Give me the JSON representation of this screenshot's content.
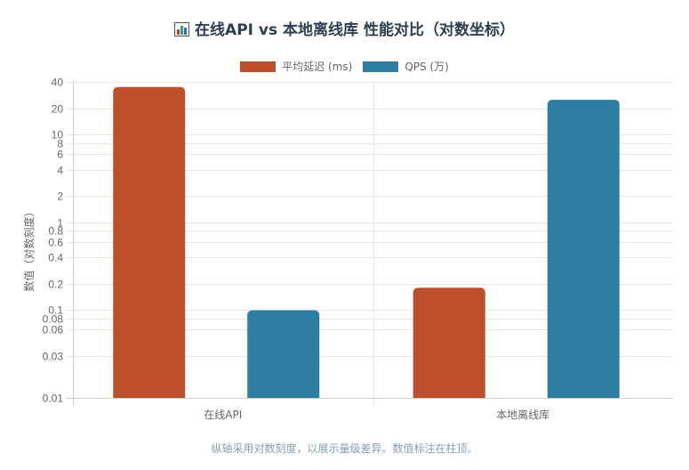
{
  "header": {
    "icon": "bar-chart-icon",
    "title": "在线API vs 本地离线库 性能对比（对数坐标）"
  },
  "legend": [
    {
      "label": "平均延迟 (ms)",
      "color": "#be4f2c"
    },
    {
      "label": "QPS (万)",
      "color": "#2e7ea1"
    }
  ],
  "footer": {
    "note": "纵轴采用对数刻度，以展示量级差异。数值标注在柱顶。"
  },
  "chart_data": {
    "type": "bar",
    "title": "在线API vs 本地离线库 性能对比（对数坐标）",
    "xlabel": "",
    "ylabel": "数值（对数刻度）",
    "yscale": "log",
    "ylim": [
      0.01,
      40
    ],
    "yticks": [
      0.01,
      0.03,
      0.06,
      0.08,
      0.1,
      0.2,
      0.4,
      0.6,
      0.8,
      1,
      2,
      4,
      6,
      8,
      10,
      20,
      40
    ],
    "ytick_labels": [
      "0.01",
      "0.03",
      "0.06",
      "0.08",
      "0.1",
      "0.2",
      "0.4",
      "0.6",
      "0.8",
      "1",
      "2",
      "4",
      "6",
      "8",
      "10",
      "20",
      "40"
    ],
    "categories": [
      "在线API",
      "本地离线库"
    ],
    "series": [
      {
        "name": "平均延迟 (ms)",
        "color": "#be4f2c",
        "values": [
          35,
          0.18
        ]
      },
      {
        "name": "QPS (万)",
        "color": "#2e7ea1",
        "values": [
          0.1,
          25
        ]
      }
    ],
    "grid": true,
    "legend_position": "top"
  }
}
